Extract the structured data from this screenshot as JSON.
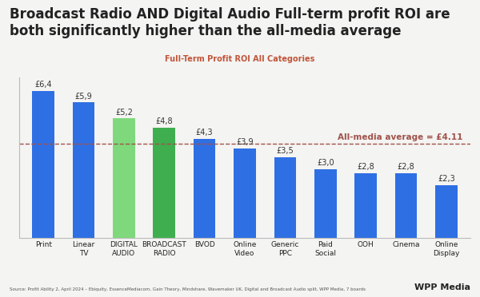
{
  "chart_data": {
    "type": "bar",
    "title": "Broadcast Radio AND Digital Audio Full-term profit ROI are both significantly higher than the all-media average",
    "subtitle": "Full-Term Profit ROI All Categories",
    "categories": [
      "Print",
      "Linear TV",
      "DIGITAL AUDIO",
      "BROADCAST RADIO",
      "BVOD",
      "Online Video",
      "Generic PPC",
      "Paid Social",
      "OOH",
      "Cinema",
      "Online Display"
    ],
    "values": [
      6.4,
      5.9,
      5.2,
      4.8,
      4.3,
      3.9,
      3.5,
      3.0,
      2.8,
      2.8,
      2.3
    ],
    "value_labels": [
      "£6,4",
      "£5,9",
      "£5,2",
      "£4,8",
      "£4,3",
      "£3,9",
      "£3,5",
      "£3,0",
      "£2,8",
      "£2,8",
      "£2,3"
    ],
    "colors": [
      "#2f6fe4",
      "#2f6fe4",
      "#7fd97c",
      "#3fae4f",
      "#2f6fe4",
      "#2f6fe4",
      "#2f6fe4",
      "#2f6fe4",
      "#2f6fe4",
      "#2f6fe4",
      "#2f6fe4"
    ],
    "average": {
      "value": 4.11,
      "label": "All-media average = £4.11"
    },
    "ylim": [
      0,
      7
    ],
    "data_labels": true,
    "tick_labels": "x",
    "source": "Source: Profit Ability 2, April 2024 – Ebiquity, EssenceMediacom, Gain Theory, Mindshare, Wavemaker UK, Digital and Broadcast Audio split, WPP Media, 7 boards",
    "logo": "WPP Media"
  }
}
